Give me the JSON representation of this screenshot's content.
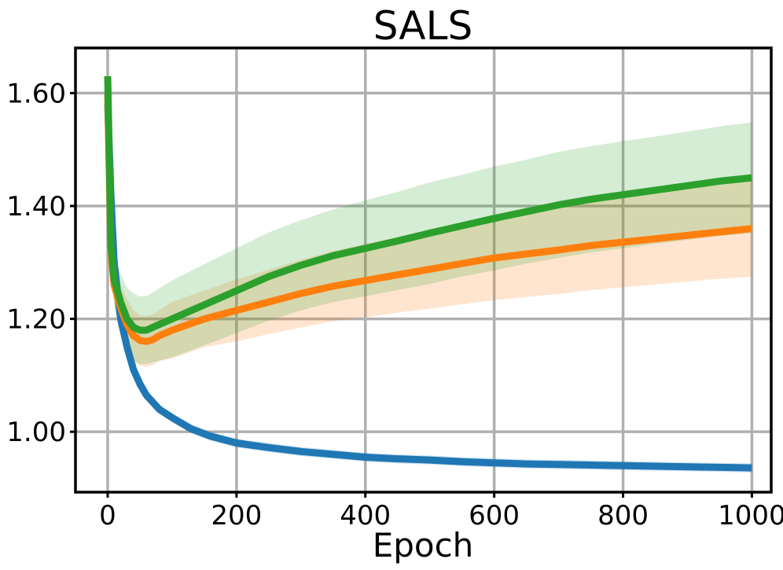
{
  "chart_data": {
    "type": "line",
    "title": "SALS",
    "xlabel": "Epoch",
    "ylabel": "",
    "xlim": [
      -50,
      1030
    ],
    "ylim": [
      0.893,
      1.68
    ],
    "grid": true,
    "legend": "none",
    "x_ticks": [
      0,
      200,
      400,
      600,
      800,
      1000
    ],
    "x_tick_labels": [
      "0",
      "200",
      "400",
      "600",
      "800",
      "1000"
    ],
    "y_ticks": [
      1.0,
      1.2,
      1.4,
      1.6
    ],
    "y_tick_labels": [
      "1.00",
      "1.20",
      "1.40",
      "1.60"
    ],
    "colors": {
      "grid": "#b0b0b0",
      "series_blue": "#1f77b4",
      "series_orange": "#ff7f0e",
      "series_green": "#2ca02c"
    },
    "series": [
      {
        "color": "#1f77b4",
        "x": [
          0,
          5,
          10,
          20,
          30,
          40,
          50,
          60,
          80,
          100,
          130,
          160,
          200,
          250,
          300,
          350,
          400,
          450,
          500,
          550,
          600,
          650,
          700,
          750,
          800,
          850,
          900,
          950,
          1000
        ],
        "y": [
          1.58,
          1.42,
          1.3,
          1.2,
          1.15,
          1.11,
          1.085,
          1.065,
          1.04,
          1.025,
          1.005,
          0.992,
          0.98,
          0.972,
          0.965,
          0.96,
          0.955,
          0.952,
          0.95,
          0.947,
          0.945,
          0.943,
          0.942,
          0.941,
          0.94,
          0.939,
          0.938,
          0.937,
          0.936
        ],
        "band": [
          0.008,
          0.008,
          0.008,
          0.008,
          0.008,
          0.008,
          0.008,
          0.008,
          0.008,
          0.008,
          0.008,
          0.008,
          0.008,
          0.008,
          0.008,
          0.008,
          0.008,
          0.008,
          0.008,
          0.008,
          0.008,
          0.008,
          0.008,
          0.008,
          0.008,
          0.008,
          0.008,
          0.008,
          0.008
        ]
      },
      {
        "color": "#ff7f0e",
        "x": [
          0,
          5,
          10,
          20,
          30,
          40,
          50,
          60,
          70,
          80,
          100,
          150,
          200,
          250,
          300,
          350,
          400,
          450,
          500,
          550,
          600,
          650,
          700,
          750,
          800,
          850,
          900,
          950,
          1000
        ],
        "y": [
          1.6,
          1.32,
          1.26,
          1.22,
          1.19,
          1.17,
          1.162,
          1.16,
          1.163,
          1.17,
          1.18,
          1.2,
          1.215,
          1.23,
          1.245,
          1.258,
          1.268,
          1.278,
          1.288,
          1.298,
          1.308,
          1.315,
          1.322,
          1.33,
          1.336,
          1.342,
          1.348,
          1.354,
          1.36
        ],
        "band": [
          0.02,
          0.03,
          0.035,
          0.04,
          0.045,
          0.045,
          0.045,
          0.045,
          0.045,
          0.045,
          0.05,
          0.05,
          0.055,
          0.057,
          0.06,
          0.062,
          0.065,
          0.067,
          0.07,
          0.072,
          0.075,
          0.076,
          0.078,
          0.079,
          0.08,
          0.081,
          0.082,
          0.083,
          0.085
        ]
      },
      {
        "color": "#2ca02c",
        "x": [
          0,
          5,
          10,
          20,
          30,
          40,
          50,
          60,
          70,
          80,
          100,
          150,
          200,
          250,
          300,
          350,
          400,
          450,
          500,
          550,
          600,
          650,
          700,
          750,
          800,
          850,
          900,
          950,
          1000
        ],
        "y": [
          1.63,
          1.33,
          1.27,
          1.23,
          1.2,
          1.185,
          1.18,
          1.18,
          1.185,
          1.19,
          1.2,
          1.225,
          1.25,
          1.275,
          1.295,
          1.312,
          1.325,
          1.338,
          1.352,
          1.365,
          1.378,
          1.39,
          1.402,
          1.412,
          1.42,
          1.428,
          1.436,
          1.444,
          1.45
        ],
        "band": [
          0.02,
          0.035,
          0.045,
          0.05,
          0.055,
          0.06,
          0.06,
          0.06,
          0.062,
          0.064,
          0.068,
          0.072,
          0.075,
          0.078,
          0.08,
          0.082,
          0.085,
          0.087,
          0.09,
          0.09,
          0.092,
          0.092,
          0.094,
          0.094,
          0.095,
          0.095,
          0.096,
          0.097,
          0.098
        ]
      }
    ]
  }
}
